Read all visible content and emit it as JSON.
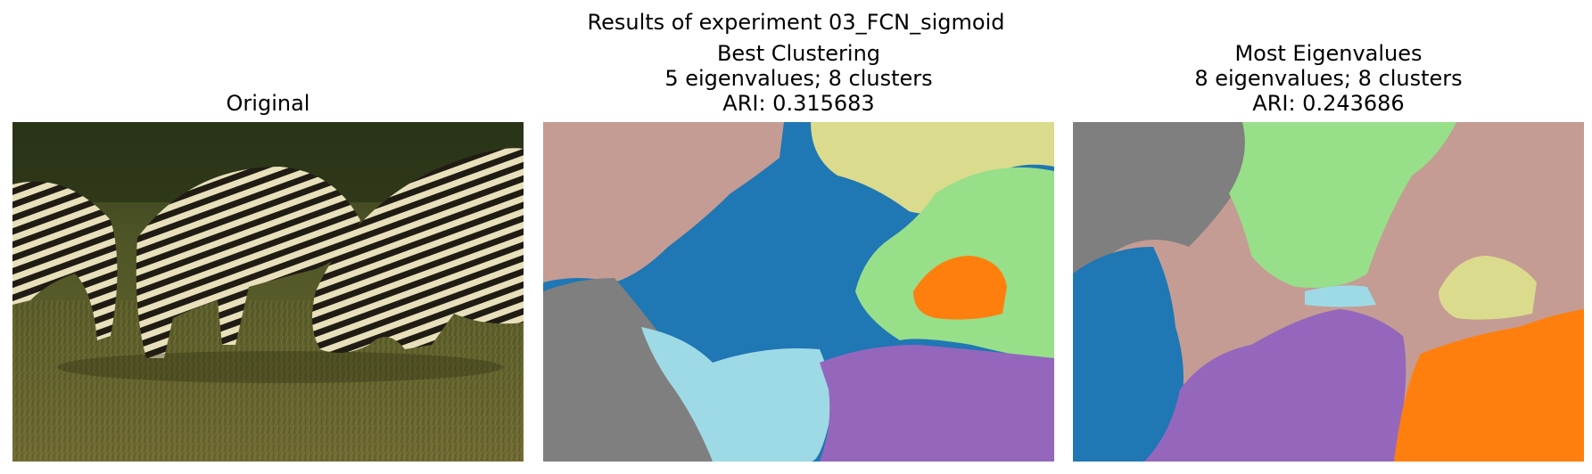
{
  "figure": {
    "suptitle": "Results of experiment 03_FCN_sigmoid"
  },
  "panels": [
    {
      "title_lines": [
        "Original"
      ],
      "image": "photo-grazing-zebras"
    },
    {
      "title_lines": [
        "Best Clustering",
        "5 eigenvalues; 8 clusters",
        "ARI: 0.315683"
      ],
      "image": "segmentation-map"
    },
    {
      "title_lines": [
        "Most Eigenvalues",
        "8 eigenvalues; 8 clusters",
        "ARI: 0.243686"
      ],
      "image": "segmentation-map"
    }
  ],
  "colors": {
    "cluster_blue": "#1f77b4",
    "cluster_pink": "#c49c94",
    "cluster_yellow": "#dbdb8d",
    "cluster_green": "#98df8a",
    "cluster_orange": "#ff7f0e",
    "cluster_gray": "#7f7f7f",
    "cluster_cyan": "#9edae5",
    "cluster_purple": "#9467bd"
  }
}
